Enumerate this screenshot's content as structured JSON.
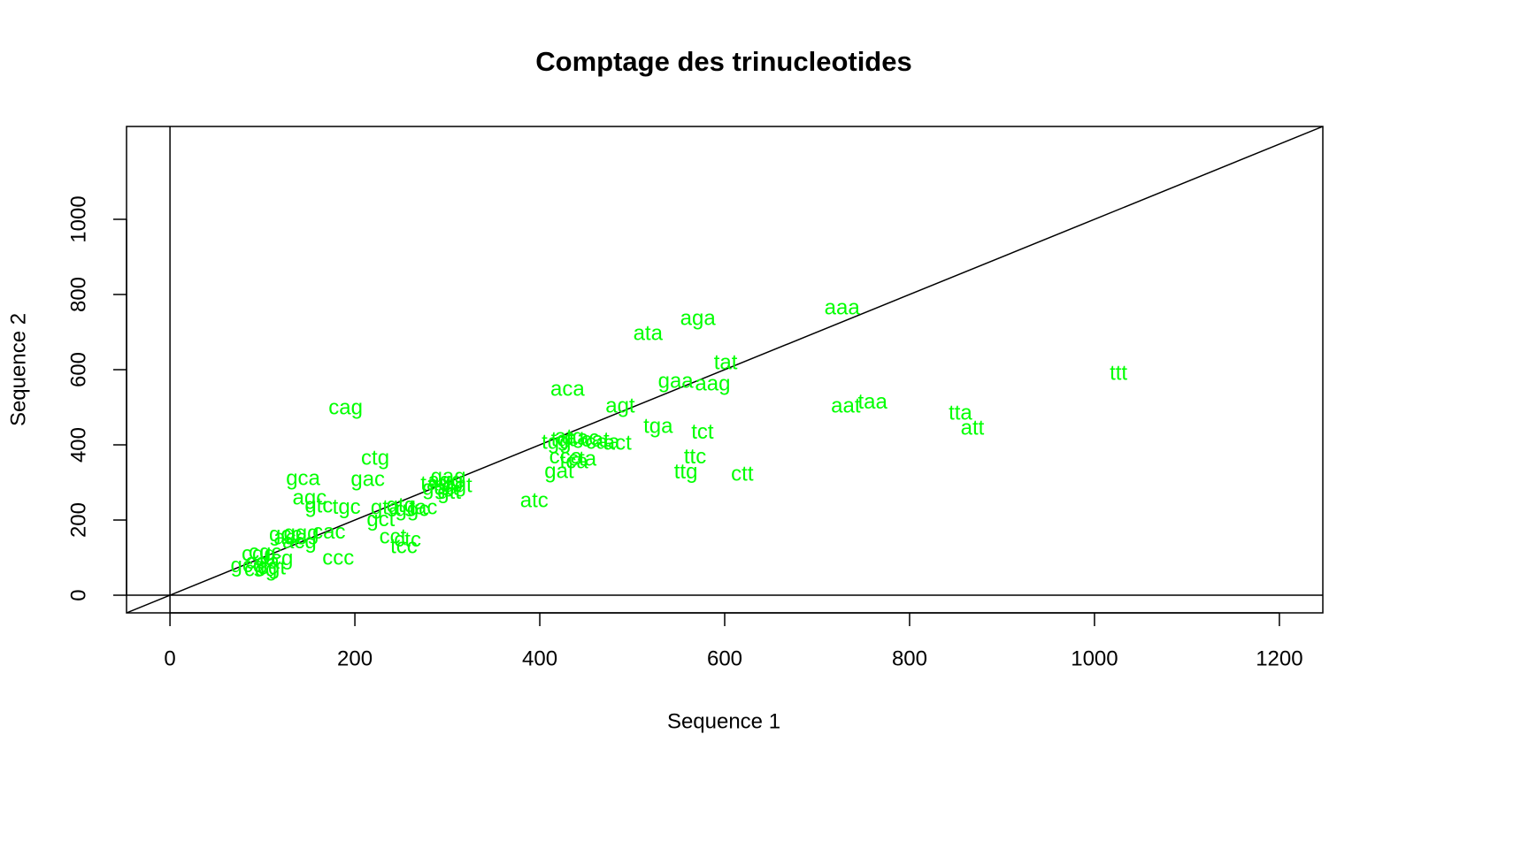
{
  "chart_data": {
    "type": "scatter",
    "title": "Comptage des trinucleotides",
    "x_label": "Sequence 1",
    "y_label": "Sequence 2",
    "xlim": [
      -47,
      1247
    ],
    "ylim": [
      -47,
      1247
    ],
    "xticks": [
      0,
      200,
      400,
      600,
      800,
      1000,
      1200
    ],
    "yticks": [
      0,
      200,
      400,
      600,
      800,
      1000
    ],
    "color": "#00ff00",
    "hlines": [
      0
    ],
    "vlines": [
      0
    ],
    "abline": {
      "intercept": 0,
      "slope": 1
    },
    "labels": [
      "aaa",
      "aga",
      "ata",
      "tat",
      "gaa",
      "aag",
      "aca",
      "ttt",
      "cag",
      "agt",
      "aat",
      "taa",
      "tta",
      "att",
      "tga",
      "tct",
      "ttc",
      "ttg",
      "ctt",
      "atc",
      "gat",
      "ctg",
      "gca",
      "gac",
      "agc",
      "gtc",
      "tgc",
      "gag",
      "gct",
      "cct",
      "ctc",
      "tcc",
      "ccc",
      "cac",
      "act",
      "tgt",
      "tgg",
      "cat",
      "atg",
      "aac",
      "caa",
      "cca",
      "cta",
      "tca",
      "ggt",
      "agg",
      "tag",
      "gtt",
      "gga",
      "gtg",
      "gta",
      "ggc",
      "tac",
      "gcc",
      "ggg",
      "acg",
      "cgc",
      "cgg",
      "cga",
      "cgt",
      "tcg",
      "ccg",
      "gcg",
      "acc"
    ],
    "x": [
      727,
      571,
      517,
      601,
      547,
      587,
      430,
      1026,
      190,
      487,
      731,
      760,
      855,
      868,
      528,
      576,
      568,
      558,
      619,
      394,
      421,
      222,
      144,
      214,
      151,
      161,
      191,
      301,
      228,
      241,
      257,
      253,
      182,
      172,
      484,
      425,
      418,
      460,
      432,
      446,
      468,
      428,
      446,
      437,
      311,
      298,
      287,
      302,
      292,
      250,
      233,
      262,
      274,
      125,
      142,
      140,
      103,
      96,
      100,
      110,
      118,
      98,
      84,
      130
    ],
    "y": [
      762,
      734,
      694,
      616,
      567,
      560,
      546,
      588,
      496,
      501,
      501,
      511,
      482,
      442,
      447,
      431,
      365,
      325,
      320,
      249,
      327,
      362,
      308,
      306,
      256,
      235,
      231,
      313,
      198,
      153,
      144,
      127,
      96,
      166,
      402,
      412,
      404,
      410,
      418,
      415,
      404,
      365,
      360,
      353,
      289,
      302,
      294,
      272,
      282,
      236,
      230,
      225,
      230,
      158,
      162,
      140,
      112,
      107,
      85,
      70,
      95,
      66,
      76,
      150
    ]
  }
}
